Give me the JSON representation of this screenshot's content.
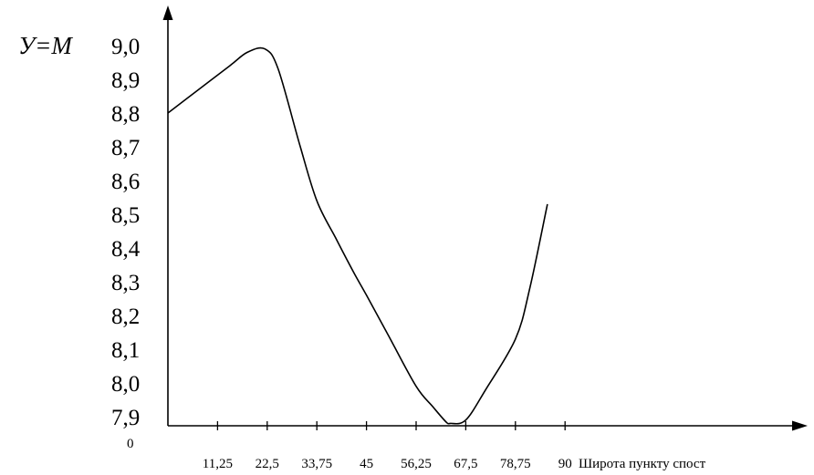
{
  "chart_data": {
    "type": "line",
    "ylabel": "У=М",
    "xlabel": "Широта пункту спост",
    "origin_label": "0",
    "x_ticks": [
      "11,25",
      "22,5",
      "33,75",
      "45",
      "56,25",
      "67,5",
      "78,75",
      "90"
    ],
    "y_ticks": [
      "7,9",
      "8,0",
      "8,1",
      "8,2",
      "8,3",
      "8,4",
      "8,5",
      "8,6",
      "8,7",
      "8,8",
      "8,9",
      "9,0"
    ],
    "ylim": [
      7.9,
      9.0
    ],
    "series": [
      {
        "x": [
          0,
          7,
          14,
          18,
          22,
          25,
          30,
          33.75,
          38,
          42,
          45,
          50,
          56.25,
          60,
          63,
          64,
          67.5,
          72,
          78.75,
          82,
          86
        ],
        "y": [
          8.8,
          8.87,
          8.94,
          8.98,
          8.99,
          8.93,
          8.7,
          8.54,
          8.43,
          8.33,
          8.26,
          8.14,
          7.99,
          7.93,
          7.885,
          7.88,
          7.89,
          7.98,
          8.13,
          8.28,
          8.53
        ]
      }
    ]
  }
}
